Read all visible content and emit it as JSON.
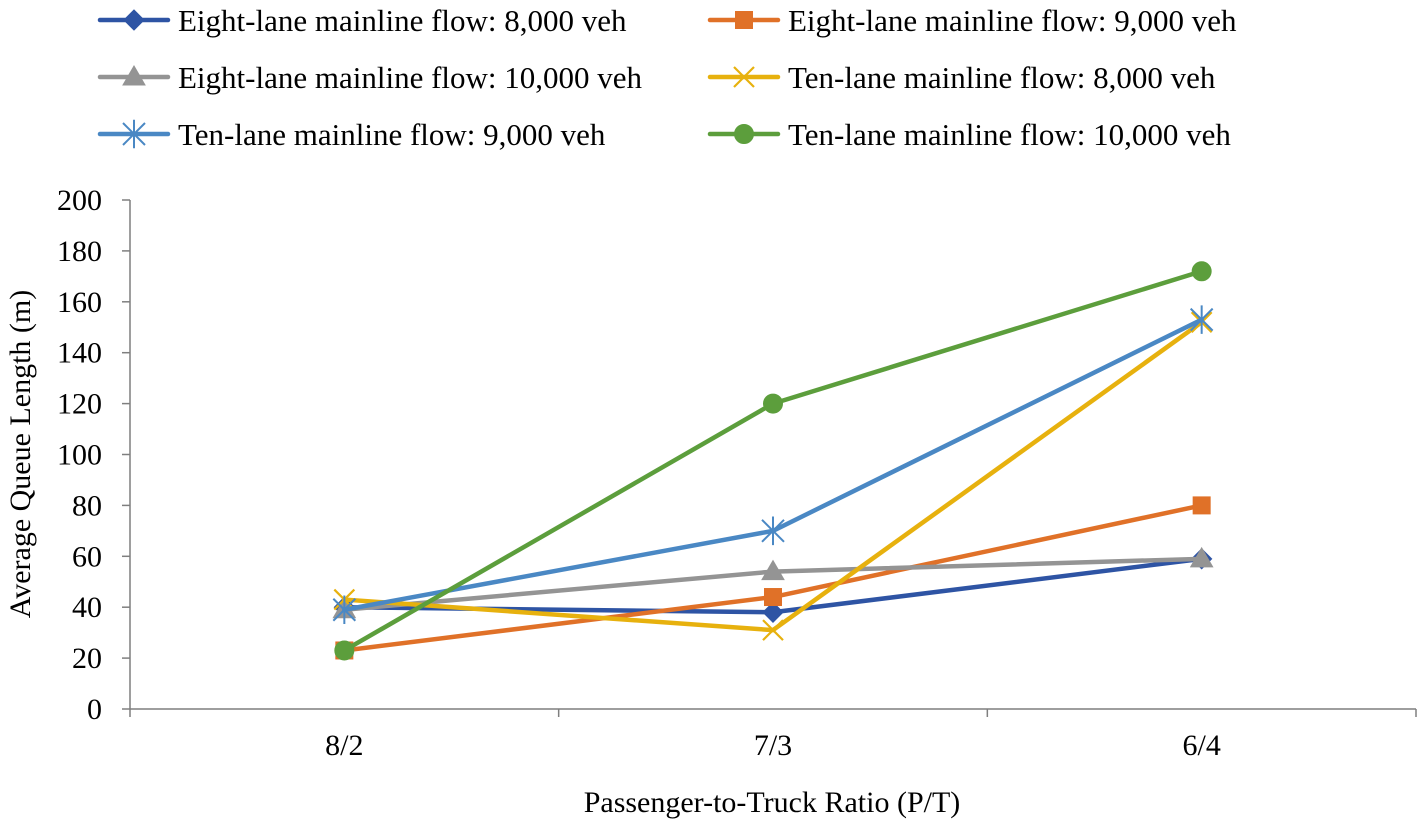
{
  "chart_data": {
    "type": "line",
    "title": "",
    "xlabel": "Passenger-to-Truck Ratio (P/T)",
    "ylabel": "Average Queue Length (m)",
    "ylim": [
      0,
      200
    ],
    "yticks": [
      "0",
      "20",
      "40",
      "60",
      "80",
      "100",
      "120",
      "140",
      "160",
      "180",
      "200"
    ],
    "categories": [
      "8/2",
      "7/3",
      "6/4"
    ],
    "grid": false,
    "legend_position": "top",
    "series": [
      {
        "name": "Eight-lane mainline flow: 8,000 veh",
        "values": [
          40,
          38,
          59
        ],
        "color": "#2E54A4",
        "marker": "diamond"
      },
      {
        "name": "Eight-lane mainline flow: 9,000 veh",
        "values": [
          23,
          44,
          80
        ],
        "color": "#E07128",
        "marker": "square"
      },
      {
        "name": "Eight-lane mainline flow: 10,000 veh",
        "values": [
          39,
          54,
          59
        ],
        "color": "#949494",
        "marker": "triangle"
      },
      {
        "name": "Ten-lane mainline flow: 8,000 veh",
        "values": [
          43,
          31,
          152
        ],
        "color": "#E7B10E",
        "marker": "x"
      },
      {
        "name": "Ten-lane mainline flow: 9,000 veh",
        "values": [
          39,
          70,
          153
        ],
        "color": "#4A88C4",
        "marker": "star"
      },
      {
        "name": "Ten-lane mainline flow: 10,000 veh",
        "values": [
          23,
          120,
          172
        ],
        "color": "#5C9E3C",
        "marker": "circle"
      }
    ]
  }
}
